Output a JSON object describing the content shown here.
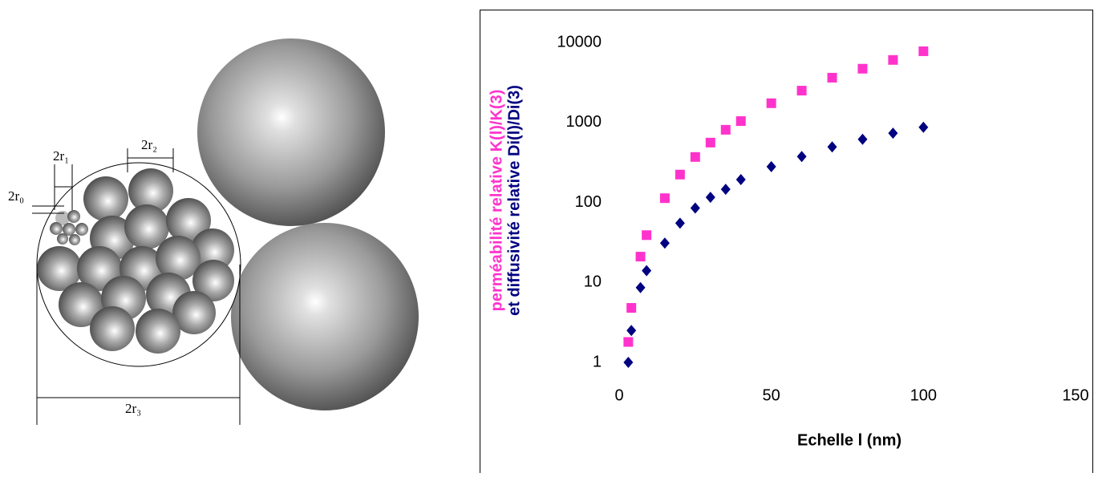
{
  "diagram": {
    "labels": [
      "2r₀",
      "2r₁",
      "2r₂",
      "2r₃"
    ]
  },
  "chart_data": {
    "type": "scatter",
    "ylabel": [
      "perméabilité relative  K(l)/K(3)",
      "et diffusivité relative Di(l)/Di(3)"
    ],
    "xlabel": "Echelle l  (nm)",
    "xlim": [
      0,
      150
    ],
    "xticks": [
      0,
      50,
      100,
      150
    ],
    "ylim": [
      1,
      10000
    ],
    "yticks": [
      1,
      10,
      100,
      1000,
      10000
    ],
    "ylog": true,
    "series": [
      {
        "color": "#ff33cc",
        "marker": "square",
        "x": [
          3,
          4,
          7,
          9,
          15,
          20,
          25,
          30,
          35,
          40,
          50,
          60,
          70,
          80,
          90,
          100
        ],
        "values": [
          1.8,
          4.8,
          21,
          39,
          113,
          223,
          370,
          560,
          810,
          1040,
          1740,
          2500,
          3630,
          4700,
          6050,
          7770
        ]
      },
      {
        "color": "#000080",
        "marker": "diamond",
        "x": [
          3,
          4,
          7,
          9,
          15,
          20,
          25,
          30,
          35,
          40,
          50,
          60,
          70,
          80,
          90,
          100
        ],
        "values": [
          1,
          2.5,
          8.6,
          14,
          31,
          55,
          85,
          116,
          146,
          193,
          280,
          375,
          495,
          615,
          735,
          870
        ]
      }
    ]
  }
}
